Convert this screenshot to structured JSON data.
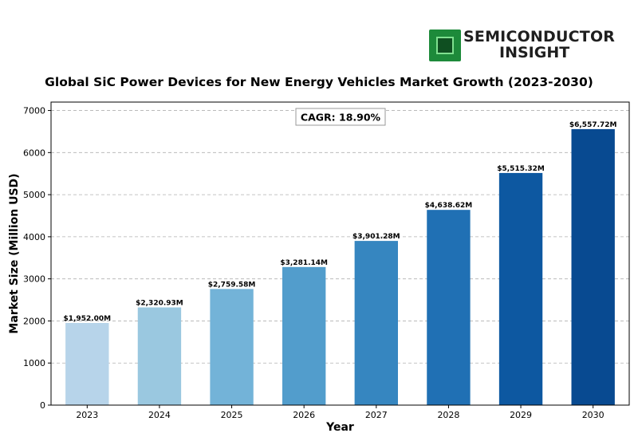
{
  "logo": {
    "line1": "SEMICONDUCTOR",
    "line2": "INSIGHT"
  },
  "chart_data": {
    "type": "bar",
    "title": "Global SiC Power Devices for New Energy Vehicles Market Growth (2023-2030)",
    "xlabel": "Year",
    "ylabel": "Market Size (Million USD)",
    "categories": [
      "2023",
      "2024",
      "2025",
      "2026",
      "2027",
      "2028",
      "2029",
      "2030"
    ],
    "values": [
      1952.0,
      2320.93,
      2759.58,
      3281.14,
      3901.28,
      4638.62,
      5515.32,
      6557.72
    ],
    "data_labels": [
      "$1,952.00M",
      "$2,320.93M",
      "$2,759.58M",
      "$3,281.14M",
      "$3,901.28M",
      "$4,638.62M",
      "$5,515.32M",
      "$6,557.72M"
    ],
    "colors": [
      "#b7d4ea",
      "#9ac8e0",
      "#73b3d8",
      "#529dcc",
      "#3686c0",
      "#2070b4",
      "#0d58a1",
      "#084a91"
    ],
    "ylim": [
      0,
      7200
    ],
    "yticks": [
      0,
      1000,
      2000,
      3000,
      4000,
      5000,
      6000,
      7000
    ],
    "grid": "horizontal dashed",
    "annotation": "CAGR: 18.90%"
  }
}
